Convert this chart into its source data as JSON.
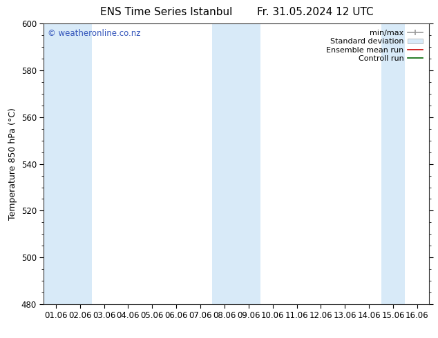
{
  "title_left": "ENS Time Series Istanbul",
  "title_right": "Fr. 31.05.2024 12 UTC",
  "ylabel": "Temperature 850 hPa (°C)",
  "ylim": [
    480,
    600
  ],
  "yticks": [
    480,
    500,
    520,
    540,
    560,
    580,
    600
  ],
  "xtick_labels": [
    "01.06",
    "02.06",
    "03.06",
    "04.06",
    "05.06",
    "06.06",
    "07.06",
    "08.06",
    "09.06",
    "10.06",
    "11.06",
    "12.06",
    "13.06",
    "14.06",
    "15.06",
    "16.06"
  ],
  "shaded_color": "#d8eaf8",
  "background_color": "#ffffff",
  "watermark_text": "© weatheronline.co.nz",
  "watermark_color": "#3355bb",
  "title_fontsize": 11,
  "axis_fontsize": 9,
  "tick_fontsize": 8.5,
  "legend_fontsize": 8
}
